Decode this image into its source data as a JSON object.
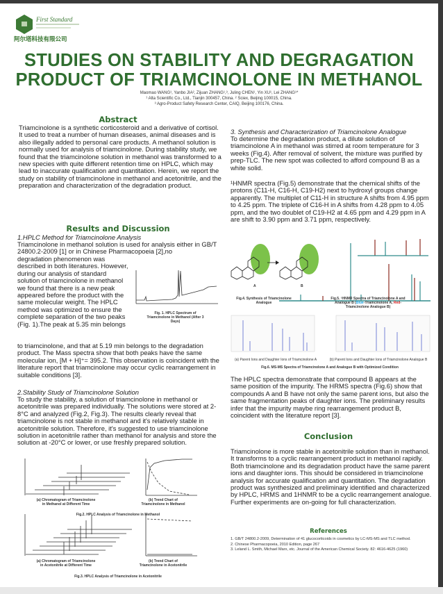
{
  "header": {
    "logo_text": "First Standard",
    "logo_cn": "阿尔塔科技有限公司",
    "title_line1": "STUDIES ON STABILITY AND DEGRAGATION",
    "title_line2": "PRODUCT OF TRIAMCINOLONE IN METHANOL",
    "authors": "Maomao WANG¹, Yanbo JIA², Zijuan ZHANG¹,³, Juling CHEN¹, Yin XU¹, Lei ZHANG¹*",
    "affil1": "¹ Alta Scientific Co., Ltd., Tianjin 300457, China. ² Sciex, Beijing 100015, China.",
    "affil2": "³ Agro-Product Safety Research Center, CAIQ, Beijing 100176, China."
  },
  "abstract": {
    "heading": "Abstract",
    "text": "Triamcinolone is a synthetic corticosteroid and a derivative of cortisol. It used to treat a number of human diseases, animal diseases and is also illegally added to personal care products. A methanol solution is normally used for analysis of triamcinolone. During stability study, we found that the triamcinolone solution in methanol was transformed to a new species with quite different retention time on HPLC, which may lead to inaccurate qualification and quantitation. Herein, we report the study on stability of triamcinolone in methanol and acetonitrile, and the preparation and characterization of the degradation product."
  },
  "results": {
    "heading": "Results and Discussion",
    "s1_title": "1.HPLC Method for Triamcinolone Analysis",
    "s1_text_a": "Triamcinolone in methanol solution is used for analysis either in GB/T 24800.2-2009 [1] or in Chinese Pharmacopoeia [2],no",
    "s1_text_b": "degradation phenomenon was described in both literatures. However, during our analysis of standard solution of triamcinolone in methanol we found that there is a new peak appeared before the product with the same molecular weight. The HPLC method was optimized to ensure the complete separation of the two peaks (Fig. 1).The peak at 5.35 min belongs",
    "s1_text_c": " to triamcinolone, and that at 5.19 min belongs to the degradation product. The Mass spectra show that both peaks have the same molecular ion, [M + H]⁺= 395.2. This observation is coincident with the literature report that triamcinolone may occur cyclic rearrangement in suitable conditions [3].",
    "fig1_caption": "Fig. 1.  HPLC Spectrum of Triamcinolone in Methanol (After 3 Days)",
    "s2_title": "2.Stability Study of Triamcinolone Solution",
    "s2_text": "To study the stability, a solution of triamcinolone in methanol or acetonitrile was prepared individually. The solutions were stored at 2-8°C and analyzed (Fig.2, Fig.3). The results clearly reveal that triamcinolone is not stable in methanol and it's relatively stable in acetonitrile solution. Therefore, it's suggested to use triamcinolone solution in acetonitrile rather than methanol for analysis and store the solution at -20°C or lower, or use freshly prepared solution.",
    "fig2a": "(a) Chromatogram of Triamcinolone in Methanol at Different Time",
    "fig2b": "(b) Trend Chart of Triamcinolone in Methanol",
    "fig2_caption": "Fig.2.  HPLC Analysis of Triamcinolone in Methanol",
    "fig3a": "(a) Chromatogram of Triamcinolone in Acetonitrile at Different Time",
    "fig3b": "(b) Trend Chart of Triamcinolone in Acetonitrile",
    "fig3_caption": "Fig.3.  HPLC Analysis of Triamcinolone in Acetonitrile",
    "s3_title": "3. Synthesis and Characterization of Triamcinolone Analogue",
    "s3_text": "To determine the degradation product, a dilute solution of triamcinolone A in methanol was stirred at room temperature for 3 weeks (Fig.4). After removal of solvent, the mixture was purified by prep-TLC. The new spot was collected to afford compound B as a white solid.",
    "nmr_text": "¹HNMR spectra (Fig.5) demonstrate that the chemical shifts of the protons (C11-H, C16-H, C19-H2) next to hydroxyl groups change apparently. The multiplet of C11-H in structure A shifts from 4.95 ppm to 4.25 ppm. The triplete of C16-H in A shifts from 4.28 ppm to 4.05 ppm, and the two doublet of C19-H2 at 4.65 ppm and 4.29 ppm in A are shift to 3.90 ppm and 3.71 ppm, respectively.",
    "fig4_label_a": "A",
    "fig4_label_b": "B",
    "fig4_caption": "Fig.4. Synthesis of Triamcinolone Analogue",
    "fig5_caption_a": "Fig.5. ¹HNMR Spectra of Triamcinolone A and Analogue B (",
    "fig5_blue": "Blue",
    "fig5_caption_b": "-Triamcinolone A,",
    "fig5_red": "Red",
    "fig5_caption_c": "-Triamcinolone Analogue B)",
    "fig6a": "(a) Parent Ions and Daughter Ions of Triamcinolone A",
    "fig6b": "(b) Parent Ions and Daughter Ions of Triamcinolone Analogue B",
    "fig6_caption": "Fig.6. MS-MS Spectra of Triamcinolone A and Analogue B with Optimized Condition",
    "hrms_text": "The HPLC spectra demonstrate that compound B appears at the same position of the impurity. The HRMS spectra (Fig.6) show that compounds A and B have not only the same parent ions, but also the same fragmentation peaks of daughter ions. The preliminary results infer that the impurity maybe ring rearrangement product B, coincident with the literature report [3]."
  },
  "conclusion": {
    "heading": "Conclusion",
    "text": "Triamcinolone is more stable in acetonitrile solution than in methanol. It transforms to a cyclic rearrangement product in methanol rapidly. Both triamcinolone and its degradation product have the same parent ions and daughter ions. This should be considered in triamcinolone analysis for accurate qualification and quantitation. The degradation product was synthesized and preliminary identified and characterized by HPLC, HRMS and 1HNMR to be a cyclic rearrangement analogue. Further experiments are on-going for full characterization."
  },
  "references": {
    "heading": "References",
    "items": [
      "1. GB/T 24800.2-2009, Determination of 41 glucocorticoids in cosmetics by LC-MS-MS and TLC method.",
      "2. Chinese Pharmacopoeia, 2010 Edition, page 267",
      "3. Leland L. Smith, Michael Marx, etc. Journal of the American Chemical Society. 82: 4616-4625 (1960)"
    ]
  },
  "colors": {
    "accent": "#2f6e2f",
    "nmr_blue": "#2e8b8b",
    "nmr_red": "#8b2a20",
    "ms_blue": "#5566cc"
  }
}
